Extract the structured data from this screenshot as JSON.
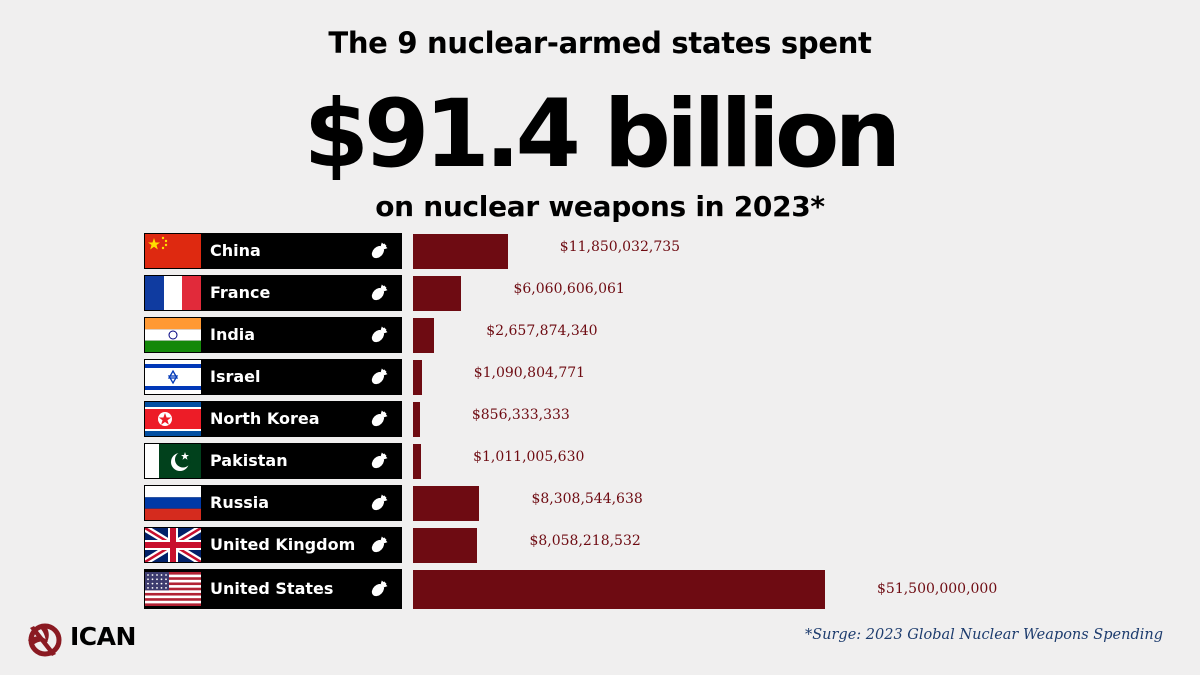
{
  "header": {
    "line1": "The 9 nuclear-armed states spent",
    "amount": "$91.4 billion",
    "line3": "on nuclear weapons in 2023*"
  },
  "chart_data": {
    "type": "bar",
    "orientation": "horizontal",
    "title": "$91.4 billion",
    "categories": [
      "China",
      "France",
      "India",
      "Israel",
      "North Korea",
      "Pakistan",
      "Russia",
      "United Kingdom",
      "United States"
    ],
    "values": [
      11850032735,
      6060606061,
      2657874340,
      1090804771,
      856333333,
      1011005630,
      8308544638,
      8058218532,
      51500000000
    ],
    "value_labels": [
      "$11,850,032,735",
      "$6,060,606,061",
      "$2,657,874,340",
      "$1,090,804,771",
      "$856,333,333",
      "$1,011,005,630",
      "$8,308,544,638",
      "$8,058,218,532",
      "$51,500,000,000"
    ],
    "flag_icons": [
      "china-flag-icon",
      "france-flag-icon",
      "india-flag-icon",
      "israel-flag-icon",
      "north-korea-flag-icon",
      "pakistan-flag-icon",
      "russia-flag-icon",
      "uk-flag-icon",
      "usa-flag-icon"
    ],
    "bar_color": "#6e0b12",
    "xlabel": "",
    "ylabel": ""
  },
  "footer": {
    "logo_text": "ICAN",
    "source": "*Surge: 2023 Global Nuclear Weapons Spending"
  }
}
